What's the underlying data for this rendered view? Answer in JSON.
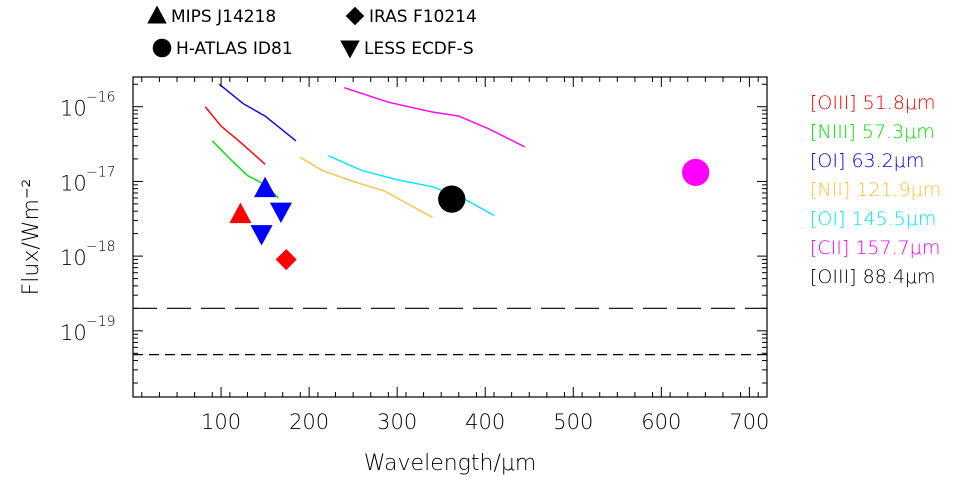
{
  "chart_data": {
    "type": "scatter",
    "xlabel": "Wavelength/μm",
    "ylabel": "Flux/Wm⁻²",
    "x_axis": {
      "scale": "linear",
      "range": [
        0,
        720
      ],
      "ticks": [
        100,
        200,
        300,
        400,
        500,
        600,
        700
      ]
    },
    "y_axis": {
      "scale": "log",
      "range": [
        1.3e-20,
        2.5e-16
      ],
      "ticks": [
        {
          "value": 1e-16,
          "mantissa": "10",
          "exponent": "−16"
        },
        {
          "value": 1e-17,
          "mantissa": "10",
          "exponent": "−17"
        },
        {
          "value": 1e-18,
          "mantissa": "10",
          "exponent": "−18"
        },
        {
          "value": 1e-19,
          "mantissa": "10",
          "exponent": "−19"
        }
      ]
    },
    "symbol_legend": [
      {
        "marker": "triangle-up",
        "label": "MIPS J14218"
      },
      {
        "marker": "diamond",
        "label": "IRAS F10214"
      },
      {
        "marker": "circle",
        "label": "H-ATLAS ID81"
      },
      {
        "marker": "triangle-down",
        "label": "LESS ECDF-S"
      }
    ],
    "line_legend": [
      {
        "bracket": "[OIII]",
        "wavelength": "51.8μm",
        "color": "#ff0000"
      },
      {
        "bracket": "[NIII]",
        "wavelength": "57.3μm",
        "color": "#00e000"
      },
      {
        "bracket": "[OI]",
        "wavelength": "63.2μm",
        "color": "#0000ff"
      },
      {
        "bracket": "[NII]",
        "wavelength": "121.9μm",
        "color": "#ffc040"
      },
      {
        "bracket": "[OI]",
        "wavelength": "145.5μm",
        "color": "#00e5ff"
      },
      {
        "bracket": "[CII]",
        "wavelength": "157.7μm",
        "color": "#ff00ff"
      },
      {
        "bracket": "[OIII]",
        "wavelength": "88.4μm",
        "color": "#000000"
      }
    ],
    "curves": [
      {
        "color": "#ff0000",
        "points": [
          [
            82,
            1e-16
          ],
          [
            100,
            5.5e-17
          ],
          [
            120,
            3.5e-17
          ],
          [
            150,
            1.7e-17
          ]
        ]
      },
      {
        "color": "#00e000",
        "points": [
          [
            90,
            3.5e-17
          ],
          [
            110,
            2e-17
          ],
          [
            130,
            1.2e-17
          ],
          [
            150,
            9e-18
          ],
          [
            165,
            6e-18
          ]
        ]
      },
      {
        "color": "#0000ff",
        "points": [
          [
            98,
            2e-16
          ],
          [
            125,
            1.1e-16
          ],
          [
            150,
            7.5e-17
          ],
          [
            185,
            3.5e-17
          ]
        ]
      },
      {
        "color": "#ffc040",
        "points": [
          [
            190,
            2.1e-17
          ],
          [
            215,
            1.4e-17
          ],
          [
            250,
            1e-17
          ],
          [
            285,
            7.5e-18
          ],
          [
            340,
            3.3e-18
          ]
        ]
      },
      {
        "color": "#00e5ff",
        "points": [
          [
            222,
            2.2e-17
          ],
          [
            260,
            1.4e-17
          ],
          [
            300,
            1.05e-17
          ],
          [
            340,
            8.5e-18
          ],
          [
            380,
            5.5e-18
          ],
          [
            410,
            3.5e-18
          ]
        ]
      },
      {
        "color": "#ff00ff",
        "points": [
          [
            240,
            1.8e-16
          ],
          [
            290,
            1.15e-16
          ],
          [
            340,
            8.5e-17
          ],
          [
            370,
            7.5e-17
          ],
          [
            405,
            5e-17
          ],
          [
            445,
            2.9e-17
          ]
        ]
      }
    ],
    "markers": [
      {
        "shape": "triangle-up",
        "color": "#ff0000",
        "x": 122,
        "y": 3.6e-18
      },
      {
        "shape": "triangle-up",
        "color": "#0000ff",
        "x": 150,
        "y": 8e-18
      },
      {
        "shape": "triangle-down",
        "color": "#0000ff",
        "x": 146,
        "y": 2e-18
      },
      {
        "shape": "triangle-down",
        "color": "#0000ff",
        "x": 168,
        "y": 4e-18
      },
      {
        "shape": "diamond",
        "color": "#ff0000",
        "x": 174,
        "y": 9e-19
      },
      {
        "shape": "circle",
        "color": "#000000",
        "x": 362,
        "y": 5.8e-18
      },
      {
        "shape": "circle",
        "color": "#ff00ff",
        "x": 639,
        "y": 1.32e-17
      }
    ],
    "horizontal_lines": [
      {
        "style": "long-dash",
        "y": 2e-19
      },
      {
        "style": "short-dash",
        "y": 4.8e-20
      }
    ]
  }
}
